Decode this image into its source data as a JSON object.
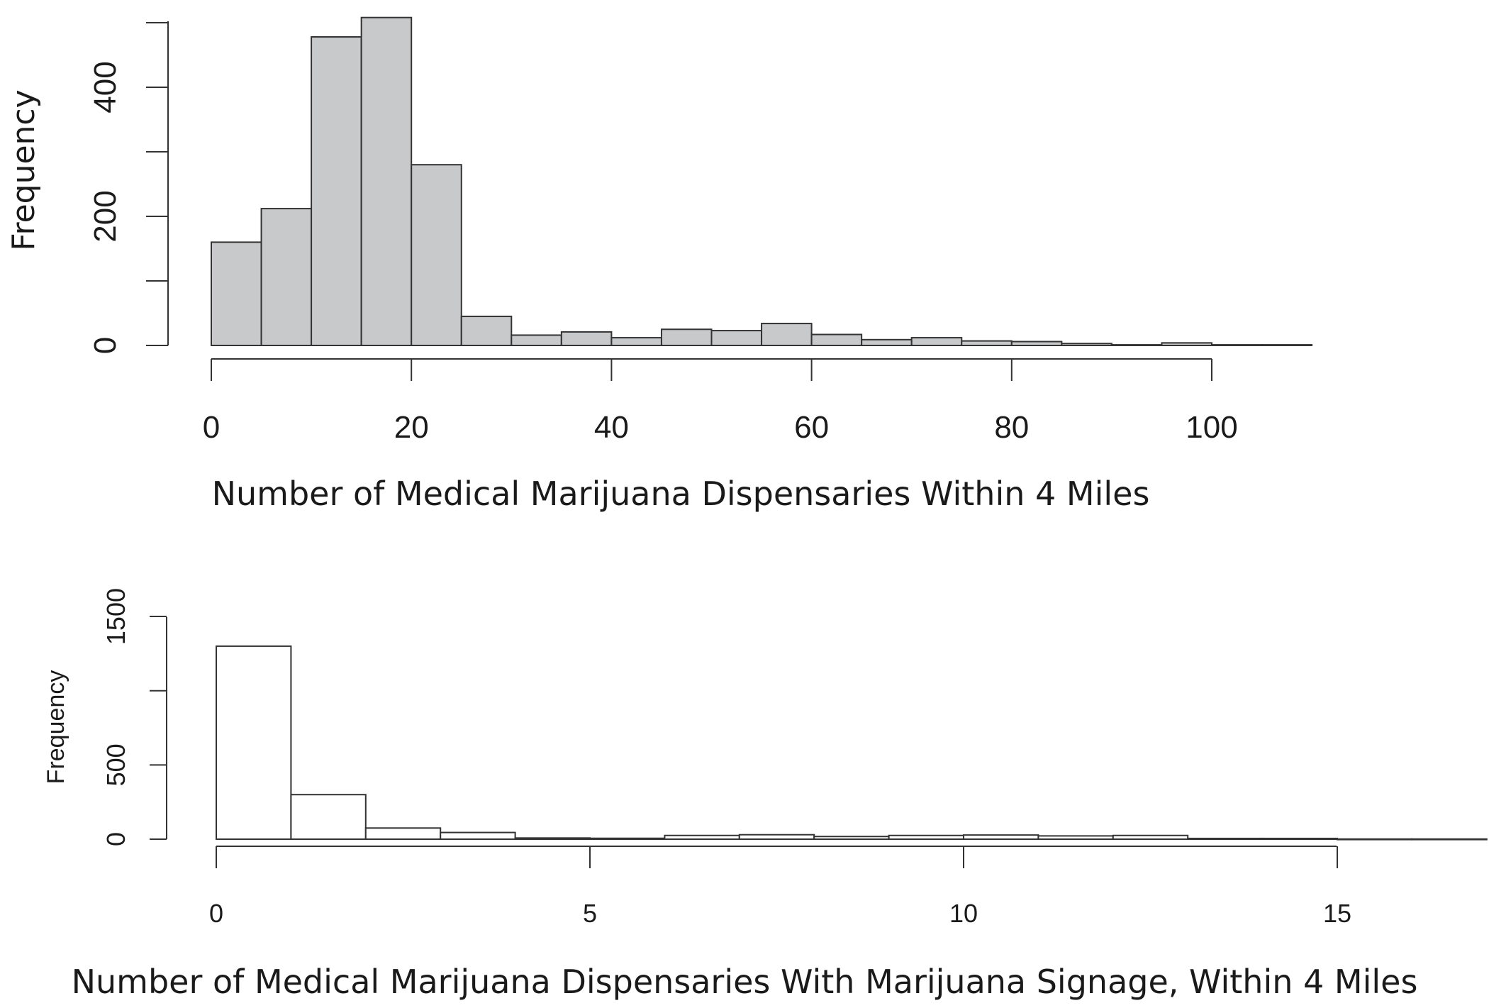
{
  "chart_data": [
    {
      "type": "bar",
      "subtype": "histogram",
      "title": "",
      "xlabel": "Number of Medical Marijuana Dispensaries Within 4 Miles",
      "ylabel": "Frequency",
      "bin_width": 5,
      "bin_starts": [
        0,
        5,
        10,
        15,
        20,
        25,
        30,
        35,
        40,
        45,
        50,
        55,
        60,
        65,
        70,
        75,
        80,
        85,
        90,
        95,
        100,
        105
      ],
      "values": [
        160,
        212,
        478,
        508,
        280,
        45,
        16,
        21,
        12,
        25,
        23,
        34,
        17,
        9,
        12,
        7,
        6,
        3,
        1,
        4,
        1,
        1
      ],
      "xticks": [
        "0",
        "20",
        "40",
        "60",
        "80",
        "100"
      ],
      "yticks": [
        "0",
        "200",
        "400"
      ],
      "xlim": [
        0,
        100
      ],
      "ylim": [
        0,
        500
      ],
      "bar_fill": "#c8c9cb",
      "grid": false,
      "legend": "none"
    },
    {
      "type": "bar",
      "subtype": "histogram",
      "title": "",
      "xlabel": "Number of Medical Marijuana Dispensaries With Marijuana Signage, Within 4 Miles",
      "ylabel": "Frequency",
      "bin_width": 1,
      "bin_starts": [
        0,
        1,
        2,
        3,
        4,
        5,
        6,
        7,
        8,
        9,
        10,
        11,
        12,
        13,
        14,
        15,
        16
      ],
      "values": [
        1300,
        300,
        75,
        45,
        8,
        6,
        25,
        30,
        18,
        25,
        28,
        22,
        25,
        5,
        5,
        1,
        1
      ],
      "xticks": [
        "0",
        "5",
        "10",
        "15"
      ],
      "yticks": [
        "0",
        "500",
        "1500"
      ],
      "xlim": [
        0,
        15
      ],
      "ylim": [
        0,
        1500
      ],
      "bar_fill": "#ffffff",
      "grid": false,
      "legend": "none"
    }
  ]
}
